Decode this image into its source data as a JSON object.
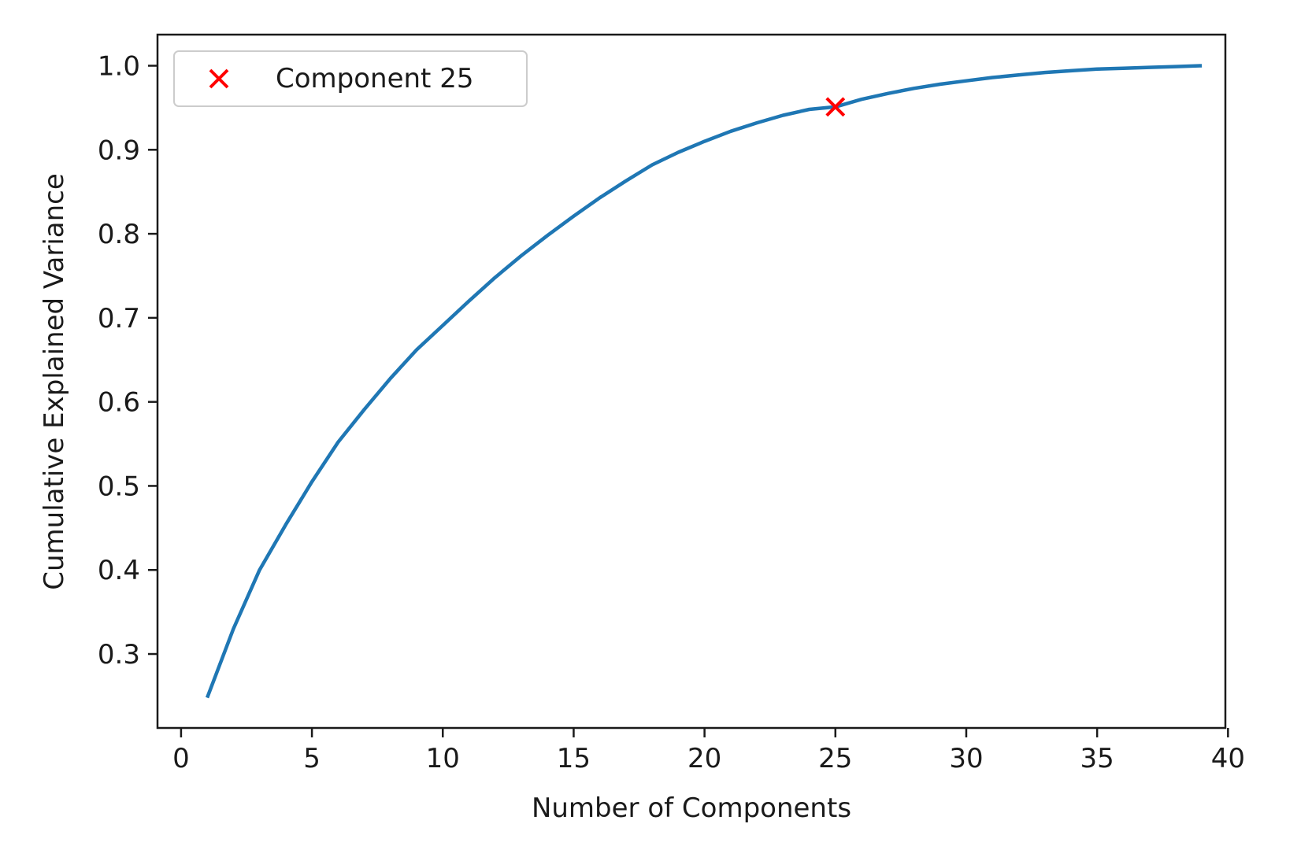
{
  "chart_data": {
    "type": "line",
    "title": "",
    "xlabel": "Number of Components",
    "ylabel": "Cumulative Explained Variance",
    "xlim": [
      -0.9,
      39.9
    ],
    "ylim": [
      0.212,
      1.037
    ],
    "xticks": [
      0,
      5,
      10,
      15,
      20,
      25,
      30,
      35,
      40
    ],
    "yticks": [
      0.3,
      0.4,
      0.5,
      0.6,
      0.7,
      0.8,
      0.9,
      1.0
    ],
    "grid": false,
    "legend_position": "upper-left",
    "series": [
      {
        "type": "line",
        "color": "#1f77b4",
        "x": [
          1,
          2,
          3,
          4,
          5,
          6,
          7,
          8,
          9,
          10,
          11,
          12,
          13,
          14,
          15,
          16,
          17,
          18,
          19,
          20,
          21,
          22,
          23,
          24,
          25,
          26,
          27,
          28,
          29,
          30,
          31,
          32,
          33,
          34,
          35,
          36,
          37,
          38,
          39
        ],
        "y": [
          0.248,
          0.33,
          0.4,
          0.454,
          0.505,
          0.552,
          0.591,
          0.628,
          0.662,
          0.691,
          0.72,
          0.748,
          0.774,
          0.798,
          0.821,
          0.843,
          0.863,
          0.882,
          0.897,
          0.91,
          0.922,
          0.932,
          0.941,
          0.948,
          0.951,
          0.96,
          0.967,
          0.973,
          0.978,
          0.982,
          0.986,
          0.989,
          0.992,
          0.994,
          0.996,
          0.997,
          0.998,
          0.999,
          1.0
        ]
      },
      {
        "type": "scatter",
        "name": "Component 25",
        "marker": "x",
        "color": "#ff0000",
        "x": [
          25
        ],
        "y": [
          0.951
        ]
      }
    ]
  }
}
